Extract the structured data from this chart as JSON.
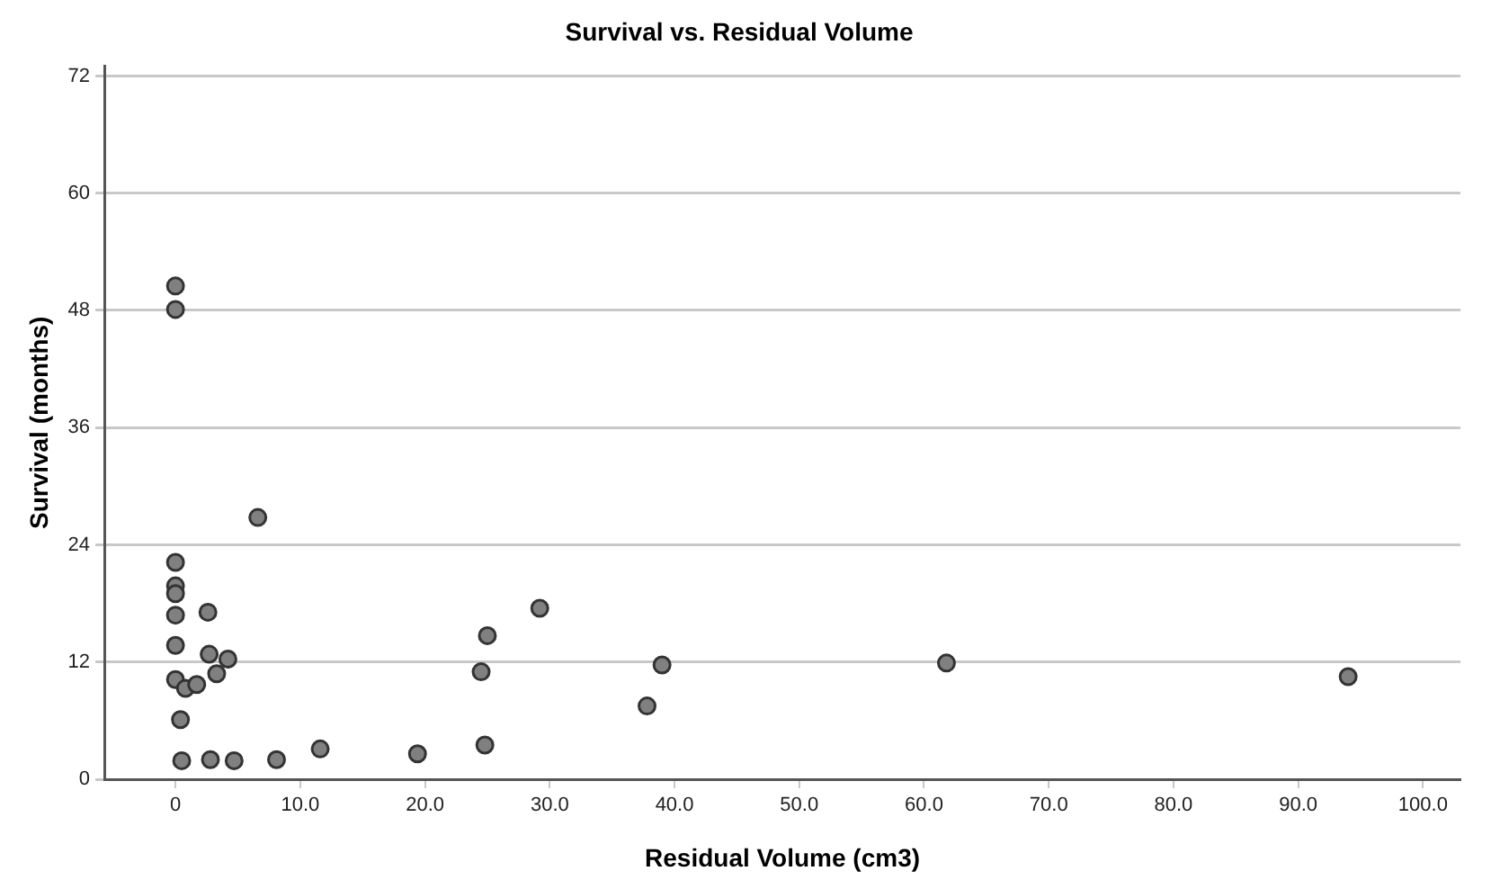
{
  "chart_data": {
    "type": "scatter",
    "title": "Survival vs. Residual Volume",
    "xlabel": "Residual Volume (cm3)",
    "ylabel": "Survival (months)",
    "series": [
      {
        "color": "#808080",
        "x": [
          0,
          0,
          6.6,
          0,
          0,
          0,
          0,
          2.6,
          0,
          2.7,
          4.2,
          3.3,
          0,
          0.8,
          1.7,
          0.4,
          0.5,
          2.8,
          4.7,
          8.1,
          11.6,
          19.4,
          24.8,
          24.5,
          25.0,
          29.2,
          37.8,
          39.0,
          61.8,
          94.0
        ],
        "values": [
          50.5,
          48.1,
          26.8,
          22.2,
          19.8,
          19.0,
          16.8,
          17.1,
          13.7,
          12.8,
          12.3,
          10.8,
          10.2,
          9.3,
          9.7,
          6.1,
          1.9,
          2.0,
          1.9,
          2.0,
          3.1,
          2.6,
          3.5,
          11.0,
          14.7,
          17.5,
          7.5,
          11.7,
          11.9,
          10.5
        ]
      }
    ],
    "xlim": [
      -5.7,
      103
    ],
    "ylim": [
      0,
      73
    ],
    "xticks": [
      0,
      {
        "value": 10,
        "label": "10.0"
      },
      {
        "value": 20,
        "label": "20.0"
      },
      {
        "value": 30,
        "label": "30.0"
      },
      {
        "value": 40,
        "label": "40.0"
      },
      {
        "value": 50,
        "label": "50.0"
      },
      {
        "value": 60,
        "label": "60.0"
      },
      {
        "value": 70,
        "label": "70.0"
      },
      {
        "value": 80,
        "label": "80.0"
      },
      {
        "value": 90,
        "label": "90.0"
      },
      {
        "value": 100,
        "label": "100.0"
      }
    ],
    "yticks": [
      0,
      12,
      24,
      36,
      48,
      60,
      72
    ],
    "grid": "y",
    "marker": "circle",
    "legend": false
  }
}
